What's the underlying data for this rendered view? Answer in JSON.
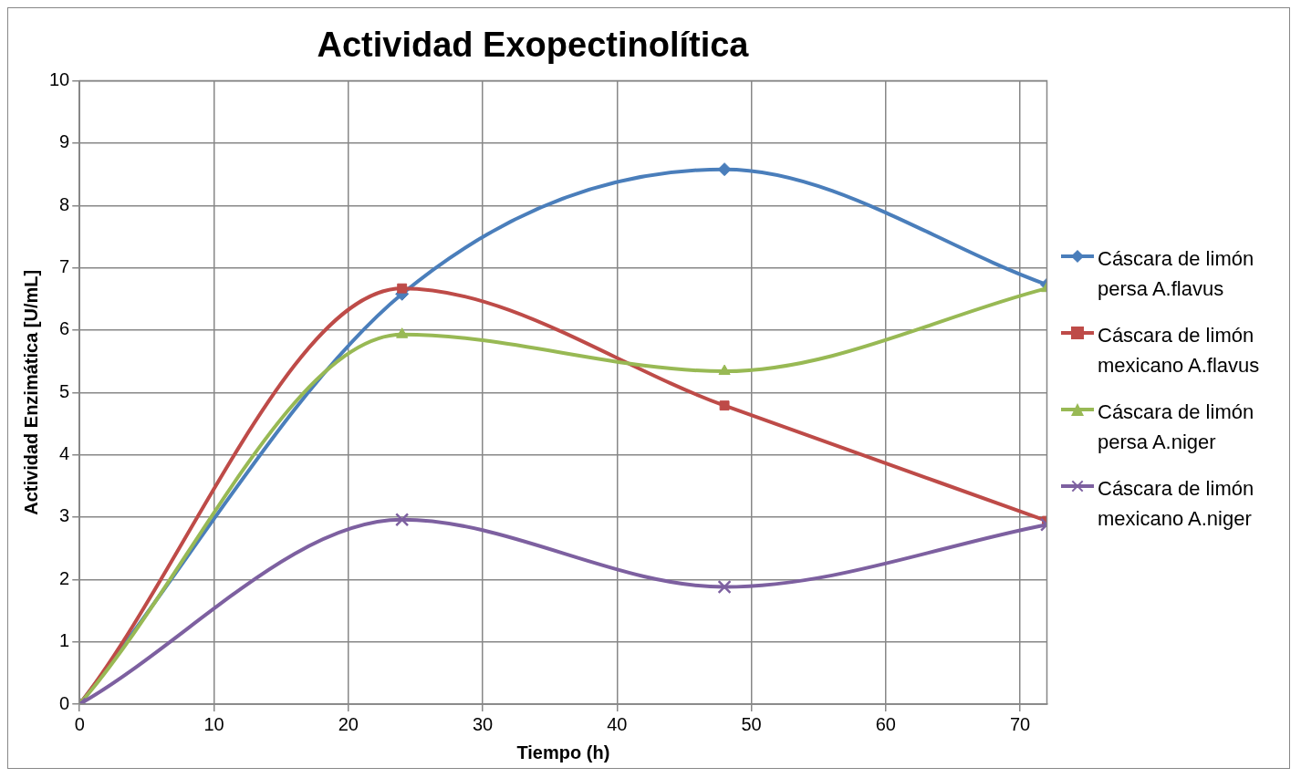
{
  "chart_data": {
    "type": "line",
    "title": "Actividad Exopectinolítica",
    "xlabel": "Tiempo (h)",
    "ylabel": "Actividad Enzimática [U/mL]",
    "x": [
      0,
      24,
      48,
      72
    ],
    "xlim": [
      0,
      72
    ],
    "xticks": [
      0,
      10,
      20,
      30,
      40,
      50,
      60,
      70
    ],
    "ylim": [
      0,
      10
    ],
    "yticks": [
      0,
      1,
      2,
      3,
      4,
      5,
      6,
      7,
      8,
      9,
      10
    ],
    "grid": true,
    "legend": "right",
    "series": [
      {
        "name": "Cáscara de limón persa A.flavus",
        "color": "#4a7ebb",
        "marker": "diamond",
        "values": [
          0,
          6.58,
          8.58,
          6.73
        ]
      },
      {
        "name": "Cáscara de limón mexicano A.flavus",
        "color": "#be4b48",
        "marker": "square",
        "values": [
          0,
          6.67,
          4.79,
          2.94
        ]
      },
      {
        "name": "Cáscara de limón persa A.niger",
        "color": "#98b954",
        "marker": "triangle",
        "values": [
          0,
          5.93,
          5.34,
          6.67
        ]
      },
      {
        "name": "Cáscara de limón mexicano A.niger",
        "color": "#7d60a0",
        "marker": "cross",
        "values": [
          0,
          2.96,
          1.88,
          2.88
        ]
      }
    ]
  }
}
